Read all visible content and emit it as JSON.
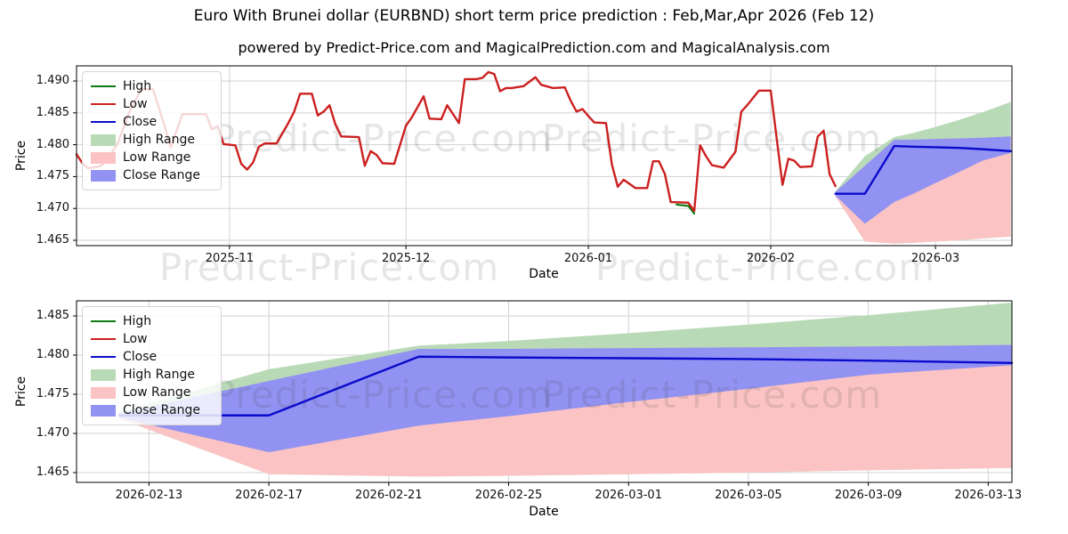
{
  "header": {
    "title": "Euro With Brunei dollar (EURBND) short term price prediction : Feb,Mar,Apr 2026 (Feb 12)",
    "subtitle": "powered by Predict-Price.com and MagicalPrediction.com and MagicalAnalysis.com"
  },
  "watermark": "Predict-Price.com",
  "colors": {
    "high_line": "#0f7a12",
    "low_line": "#cc2020",
    "close_line": "#0b0bcd",
    "high_band": "#b9dab7",
    "low_band": "#fbc3c3",
    "close_band": "#9292f2",
    "grid": "#d2d2d2",
    "spine": "#000000"
  },
  "legend": {
    "items": [
      {
        "label": "High",
        "type": "line",
        "color": "#0f7a12"
      },
      {
        "label": "Low",
        "type": "line",
        "color": "#cc2020"
      },
      {
        "label": "Close",
        "type": "line",
        "color": "#0b0bcd"
      },
      {
        "label": "High Range",
        "type": "patch",
        "color": "#b9dab7"
      },
      {
        "label": "Low Range",
        "type": "patch",
        "color": "#fbc3c3"
      },
      {
        "label": "Close Range",
        "type": "patch",
        "color": "#9292f2"
      }
    ]
  },
  "prediction": {
    "dates": [
      "2026-02-12",
      "2026-02-17",
      "2026-02-22",
      "2026-02-25",
      "2026-03-01",
      "2026-03-05",
      "2026-03-09",
      "2026-03-13T19:00"
    ],
    "close": [
      1.4723,
      1.4723,
      1.4798,
      1.4797,
      1.4796,
      1.4795,
      1.4793,
      1.479
    ],
    "close_upper": [
      1.4726,
      1.4767,
      1.4808,
      1.4808,
      1.4809,
      1.481,
      1.4811,
      1.4813
    ],
    "close_lower": [
      1.472,
      1.4676,
      1.471,
      1.4722,
      1.474,
      1.4757,
      1.4775,
      1.4787
    ],
    "high_upper": [
      1.4727,
      1.4782,
      1.4812,
      1.4818,
      1.4828,
      1.4839,
      1.4851,
      1.4867
    ],
    "low_lower": [
      1.4719,
      1.4648,
      1.4645,
      1.4646,
      1.4648,
      1.465,
      1.4653,
      1.4656
    ]
  },
  "chart_data": [
    {
      "name": "price-history-with-prediction",
      "type": "line",
      "xlabel": "Date",
      "ylabel": "Price",
      "x_range": [
        "2025-10-06",
        "2026-03-14"
      ],
      "y_top": 1.49238,
      "y_bottom": 1.46416,
      "y_gridlines": [
        1.49,
        1.485,
        1.48,
        1.475,
        1.47,
        1.465
      ],
      "ytick_labels": [
        "1.490",
        "1.485",
        "1.480",
        "1.475",
        "1.470",
        "1.465"
      ],
      "xticks": [
        {
          "date": "2025-11-01",
          "label": "2025-11"
        },
        {
          "date": "2025-12-01",
          "label": "2025-12"
        },
        {
          "date": "2026-01-01",
          "label": "2026-01"
        },
        {
          "date": "2026-02-01",
          "label": "2026-02"
        },
        {
          "date": "2026-03-01",
          "label": "2026-03"
        }
      ],
      "series": [
        {
          "name": "Low",
          "points": [
            [
              "2025-10-06",
              1.4785
            ],
            [
              "2025-10-07",
              1.4771
            ],
            [
              "2025-10-08",
              1.4763
            ],
            [
              "2025-10-10",
              1.4766
            ],
            [
              "2025-10-11",
              1.4773
            ],
            [
              "2025-10-13",
              1.4802
            ],
            [
              "2025-10-15",
              1.4852
            ],
            [
              "2025-10-17",
              1.4887
            ],
            [
              "2025-10-19",
              1.4887
            ],
            [
              "2025-10-20",
              1.4858
            ],
            [
              "2025-10-21",
              1.4828
            ],
            [
              "2025-10-22",
              1.4796
            ],
            [
              "2025-10-23",
              1.4822
            ],
            [
              "2025-10-24",
              1.4848
            ],
            [
              "2025-10-28",
              1.4848
            ],
            [
              "2025-10-29",
              1.4824
            ],
            [
              "2025-10-30",
              1.4829
            ],
            [
              "2025-10-31",
              1.4801
            ],
            [
              "2025-11-02",
              1.4799
            ],
            [
              "2025-11-03",
              1.477
            ],
            [
              "2025-11-04",
              1.4761
            ],
            [
              "2025-11-05",
              1.4772
            ],
            [
              "2025-11-06",
              1.4797
            ],
            [
              "2025-11-07",
              1.4802
            ],
            [
              "2025-11-09",
              1.4802
            ],
            [
              "2025-11-10",
              1.4818
            ],
            [
              "2025-11-11",
              1.4834
            ],
            [
              "2025-11-12",
              1.4852
            ],
            [
              "2025-11-13",
              1.488
            ],
            [
              "2025-11-15",
              1.488
            ],
            [
              "2025-11-16",
              1.4846
            ],
            [
              "2025-11-17",
              1.4852
            ],
            [
              "2025-11-18",
              1.4862
            ],
            [
              "2025-11-19",
              1.4832
            ],
            [
              "2025-11-20",
              1.4813
            ],
            [
              "2025-11-23",
              1.4812
            ],
            [
              "2025-11-24",
              1.4767
            ],
            [
              "2025-11-25",
              1.479
            ],
            [
              "2025-11-26",
              1.4784
            ],
            [
              "2025-11-27",
              1.4771
            ],
            [
              "2025-11-29",
              1.477
            ],
            [
              "2025-11-30",
              1.48
            ],
            [
              "2025-12-01",
              1.483
            ],
            [
              "2025-12-02",
              1.4843
            ],
            [
              "2025-12-04",
              1.4876
            ],
            [
              "2025-12-05",
              1.4841
            ],
            [
              "2025-12-07",
              1.484
            ],
            [
              "2025-12-08",
              1.4862
            ],
            [
              "2025-12-10",
              1.4834
            ],
            [
              "2025-12-11",
              1.4903
            ],
            [
              "2025-12-13",
              1.4903
            ],
            [
              "2025-12-14",
              1.4905
            ],
            [
              "2025-12-15",
              1.4914
            ],
            [
              "2025-12-16",
              1.4911
            ],
            [
              "2025-12-17",
              1.4884
            ],
            [
              "2025-12-18",
              1.4889
            ],
            [
              "2025-12-19",
              1.4889
            ],
            [
              "2025-12-21",
              1.4892
            ],
            [
              "2025-12-23",
              1.4906
            ],
            [
              "2025-12-24",
              1.4894
            ],
            [
              "2025-12-26",
              1.4889
            ],
            [
              "2025-12-28",
              1.489
            ],
            [
              "2025-12-29",
              1.4869
            ],
            [
              "2025-12-30",
              1.4852
            ],
            [
              "2025-12-31",
              1.4856
            ],
            [
              "2026-01-01",
              1.4845
            ],
            [
              "2026-01-02",
              1.4835
            ],
            [
              "2026-01-04",
              1.4834
            ],
            [
              "2026-01-05",
              1.4769
            ],
            [
              "2026-01-06",
              1.4734
            ],
            [
              "2026-01-07",
              1.4745
            ],
            [
              "2026-01-09",
              1.4732
            ],
            [
              "2026-01-11",
              1.4732
            ],
            [
              "2026-01-12",
              1.4774
            ],
            [
              "2026-01-13",
              1.4774
            ],
            [
              "2026-01-14",
              1.4754
            ],
            [
              "2026-01-15",
              1.471
            ],
            [
              "2026-01-18",
              1.4709
            ],
            [
              "2026-01-19",
              1.4696
            ],
            [
              "2026-01-20",
              1.4799
            ],
            [
              "2026-01-21",
              1.4782
            ],
            [
              "2026-01-22",
              1.4768
            ],
            [
              "2026-01-24",
              1.4764
            ],
            [
              "2026-01-26",
              1.4789
            ],
            [
              "2026-01-27",
              1.4852
            ],
            [
              "2026-01-28",
              1.4862
            ],
            [
              "2026-01-30",
              1.4885
            ],
            [
              "2026-02-01",
              1.4885
            ],
            [
              "2026-02-03",
              1.4737
            ],
            [
              "2026-02-04",
              1.4778
            ],
            [
              "2026-02-05",
              1.4775
            ],
            [
              "2026-02-06",
              1.4765
            ],
            [
              "2026-02-08",
              1.4766
            ],
            [
              "2026-02-09",
              1.4813
            ],
            [
              "2026-02-10",
              1.4822
            ],
            [
              "2026-02-11",
              1.4754
            ],
            [
              "2026-02-12",
              1.4735
            ]
          ]
        },
        {
          "name": "High (visible segment)",
          "points": [
            [
              "2026-01-16",
              1.4706
            ],
            [
              "2026-01-18",
              1.4704
            ],
            [
              "2026-01-19",
              1.4692
            ]
          ]
        }
      ]
    },
    {
      "name": "prediction-detail",
      "type": "area",
      "xlabel": "Date",
      "ylabel": "Price",
      "x_range": [
        "2026-02-10T14:00",
        "2026-03-13T19:00"
      ],
      "y_top": 1.48693,
      "y_bottom": 1.46375,
      "y_gridlines": [
        1.485,
        1.48,
        1.475,
        1.47,
        1.465
      ],
      "ytick_labels": [
        "1.485",
        "1.480",
        "1.475",
        "1.470",
        "1.465"
      ],
      "xticks": [
        {
          "date": "2026-02-13",
          "label": "2026-02-13"
        },
        {
          "date": "2026-02-17",
          "label": "2026-02-17"
        },
        {
          "date": "2026-02-21",
          "label": "2026-02-21"
        },
        {
          "date": "2026-02-25",
          "label": "2026-02-25"
        },
        {
          "date": "2026-03-01",
          "label": "2026-03-01"
        },
        {
          "date": "2026-03-05",
          "label": "2026-03-05"
        },
        {
          "date": "2026-03-09",
          "label": "2026-03-09"
        },
        {
          "date": "2026-03-13",
          "label": "2026-03-13"
        }
      ]
    }
  ]
}
